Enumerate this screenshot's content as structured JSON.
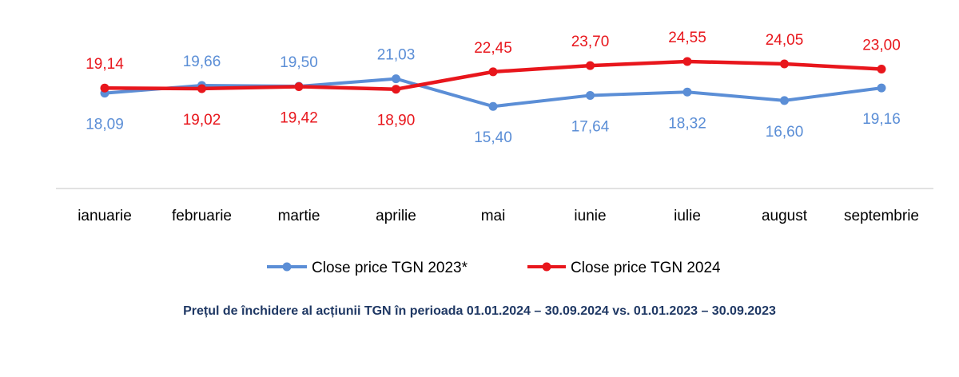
{
  "chart_data": {
    "type": "line",
    "categories": [
      "ianuarie",
      "februarie",
      "martie",
      "aprilie",
      "mai",
      "iunie",
      "iulie",
      "august",
      "septembrie"
    ],
    "series": [
      {
        "name": "Close price TGN 2023*",
        "color": "#5b8ed6",
        "values": [
          18.09,
          19.66,
          19.5,
          21.03,
          15.4,
          17.64,
          18.32,
          16.6,
          19.16
        ],
        "labels": [
          "18,09",
          "19,66",
          "19,50",
          "21,03",
          "15,40",
          "17,64",
          "18,32",
          "16,60",
          "19,16"
        ]
      },
      {
        "name": "Close price TGN 2024",
        "color": "#e8161c",
        "values": [
          19.14,
          19.02,
          19.42,
          18.9,
          22.45,
          23.7,
          24.55,
          24.05,
          23.0
        ],
        "labels": [
          "19,14",
          "19,02",
          "19,42",
          "18,90",
          "22,45",
          "23,70",
          "24,55",
          "24,05",
          "23,00"
        ]
      }
    ],
    "legend_position": "bottom",
    "grid": false
  },
  "caption": "Prețul de închidere al acțiunii TGN în perioada 01.01.2024 – 30.09.2024 vs. 01.01.2023 – 30.09.2023"
}
